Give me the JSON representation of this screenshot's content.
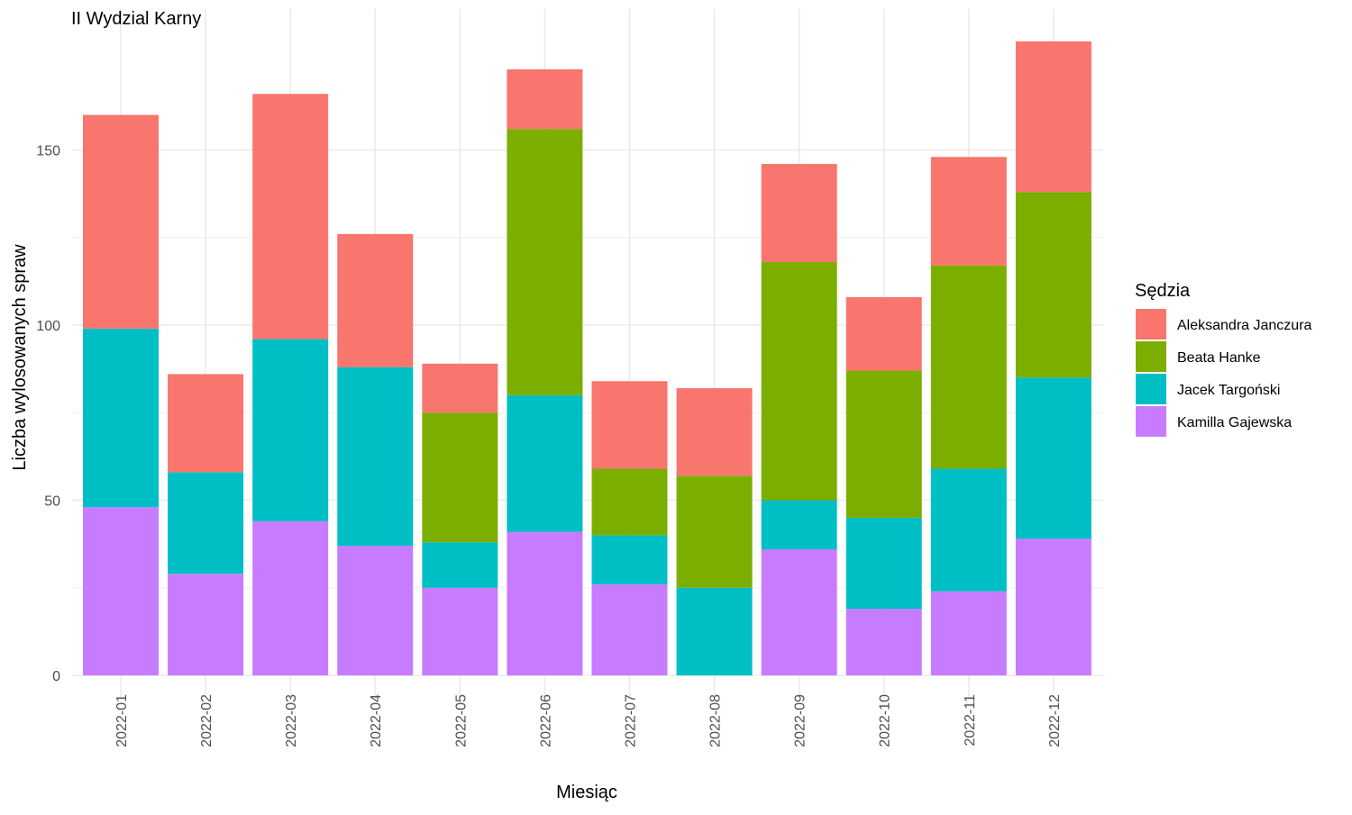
{
  "chart_data": {
    "type": "bar",
    "stacked": true,
    "title": "II Wydzial Karny",
    "xlabel": "Miesiąc",
    "ylabel": "Liczba wylosowanych spraw",
    "ylim": [
      0,
      185
    ],
    "yticks": [
      0,
      50,
      100,
      150
    ],
    "grid": true,
    "legend_position": "right",
    "legend_title": "Sędzia",
    "categories": [
      "2022-01",
      "2022-02",
      "2022-03",
      "2022-04",
      "2022-05",
      "2022-06",
      "2022-07",
      "2022-08",
      "2022-09",
      "2022-10",
      "2022-11",
      "2022-12"
    ],
    "series": [
      {
        "name": "Kamilla Gajewska",
        "color": "#C77CFF",
        "values": [
          48,
          29,
          44,
          37,
          25,
          41,
          26,
          0,
          36,
          19,
          24,
          39
        ]
      },
      {
        "name": "Jacek Targoński",
        "color": "#00BFC4",
        "values": [
          51,
          29,
          52,
          51,
          13,
          39,
          14,
          25,
          14,
          26,
          35,
          46
        ]
      },
      {
        "name": "Beata Hanke",
        "color": "#7CAE00",
        "values": [
          0,
          0,
          0,
          0,
          37,
          76,
          19,
          32,
          68,
          42,
          58,
          53
        ]
      },
      {
        "name": "Aleksandra Janczura",
        "color": "#F8766D",
        "values": [
          61,
          28,
          70,
          38,
          14,
          17,
          25,
          25,
          28,
          21,
          31,
          43
        ]
      }
    ],
    "legend_order": [
      "Aleksandra Janczura",
      "Beata Hanke",
      "Jacek Targoński",
      "Kamilla Gajewska"
    ]
  }
}
